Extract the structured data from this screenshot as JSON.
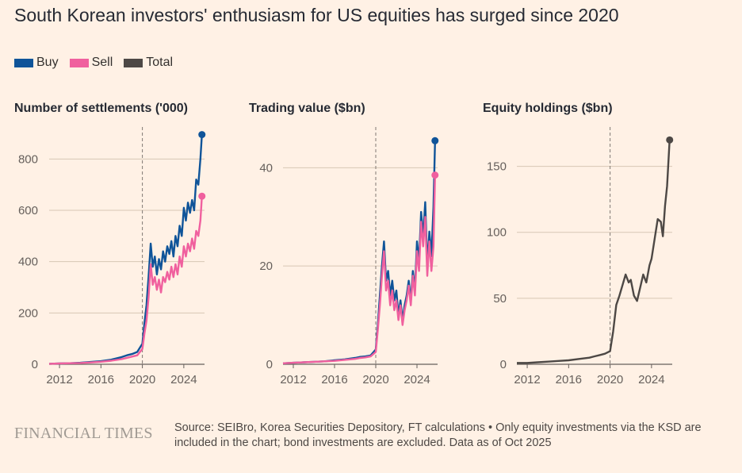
{
  "title": "South Korean investors' enthusiasm for US equities has surged since 2020",
  "legend": [
    {
      "label": "Buy",
      "color": "#0f5499"
    },
    {
      "label": "Sell",
      "color": "#f0609e"
    },
    {
      "label": "Total",
      "color": "#4d4845"
    }
  ],
  "colors": {
    "buy": "#0f5499",
    "sell": "#f0609e",
    "total": "#4d4845",
    "grid": "#d7c7b5",
    "axis": "#66605c"
  },
  "chart_data": [
    {
      "type": "line",
      "title": "Number of settlements ('000)",
      "x_ticks": [
        "2012",
        "2016",
        "2020",
        "2024"
      ],
      "y_ticks": [
        "0",
        "200",
        "400",
        "600",
        "800"
      ],
      "xlim": [
        2011.0,
        2026.0
      ],
      "ylim": [
        0,
        900
      ],
      "reference_line_x": 2020,
      "series": [
        {
          "name": "Buy",
          "color": "#0f5499",
          "x": [
            2011,
            2012,
            2013,
            2014,
            2015,
            2016,
            2017,
            2018,
            2018.5,
            2019,
            2019.5,
            2020,
            2020.2,
            2020.4,
            2020.6,
            2020.8,
            2021.0,
            2021.2,
            2021.4,
            2021.6,
            2021.8,
            2022.0,
            2022.2,
            2022.4,
            2022.6,
            2022.8,
            2023.0,
            2023.2,
            2023.4,
            2023.6,
            2023.8,
            2024.0,
            2024.2,
            2024.4,
            2024.6,
            2024.8,
            2025.0,
            2025.2,
            2025.4,
            2025.6,
            2025.75
          ],
          "y": [
            2,
            3,
            4,
            6,
            9,
            12,
            18,
            28,
            35,
            40,
            48,
            80,
            160,
            230,
            340,
            470,
            380,
            420,
            350,
            410,
            370,
            440,
            400,
            460,
            430,
            480,
            420,
            500,
            460,
            540,
            500,
            610,
            560,
            630,
            590,
            640,
            600,
            720,
            700,
            800,
            895
          ]
        },
        {
          "name": "Sell",
          "color": "#f0609e",
          "x": [
            2011,
            2012,
            2013,
            2014,
            2015,
            2016,
            2017,
            2018,
            2018.5,
            2019,
            2019.5,
            2020,
            2020.2,
            2020.4,
            2020.6,
            2020.8,
            2021.0,
            2021.2,
            2021.4,
            2021.6,
            2021.8,
            2022.0,
            2022.2,
            2022.4,
            2022.6,
            2022.8,
            2023.0,
            2023.2,
            2023.4,
            2023.6,
            2023.8,
            2024.0,
            2024.2,
            2024.4,
            2024.6,
            2024.8,
            2025.0,
            2025.2,
            2025.4,
            2025.6,
            2025.75
          ],
          "y": [
            2,
            3,
            4,
            5,
            7,
            10,
            14,
            20,
            25,
            30,
            35,
            60,
            120,
            170,
            260,
            390,
            310,
            340,
            290,
            330,
            280,
            340,
            320,
            360,
            330,
            380,
            340,
            390,
            350,
            420,
            380,
            460,
            420,
            470,
            440,
            490,
            450,
            520,
            500,
            560,
            655
          ]
        }
      ],
      "end_values": [
        895,
        655
      ]
    },
    {
      "type": "line",
      "title": "Trading value ($bn)",
      "x_ticks": [
        "2012",
        "2016",
        "2020",
        "2024"
      ],
      "y_ticks": [
        "0",
        "20",
        "40"
      ],
      "xlim": [
        2011.0,
        2026.0
      ],
      "ylim": [
        0,
        47
      ],
      "reference_line_x": 2020,
      "series": [
        {
          "name": "Buy",
          "color": "#0f5499",
          "x": [
            2011,
            2012,
            2013,
            2014,
            2015,
            2016,
            2017,
            2018,
            2018.5,
            2019,
            2019.5,
            2020,
            2020.2,
            2020.4,
            2020.6,
            2020.8,
            2021.0,
            2021.2,
            2021.4,
            2021.6,
            2021.8,
            2022.0,
            2022.2,
            2022.4,
            2022.6,
            2022.8,
            2023.0,
            2023.2,
            2023.4,
            2023.6,
            2023.8,
            2024.0,
            2024.2,
            2024.4,
            2024.6,
            2024.8,
            2025.0,
            2025.2,
            2025.4,
            2025.6,
            2025.75
          ],
          "y": [
            0.2,
            0.3,
            0.4,
            0.5,
            0.6,
            0.8,
            1.0,
            1.3,
            1.5,
            1.6,
            1.8,
            3,
            8,
            14,
            20,
            25,
            17,
            19,
            14,
            17,
            13,
            15,
            10,
            13,
            9,
            12,
            14,
            17,
            13,
            19,
            15,
            25,
            21,
            31,
            26,
            33,
            20,
            27,
            22,
            32,
            45.5
          ]
        },
        {
          "name": "Sell",
          "color": "#f0609e",
          "x": [
            2011,
            2012,
            2013,
            2014,
            2015,
            2016,
            2017,
            2018,
            2018.5,
            2019,
            2019.5,
            2020,
            2020.2,
            2020.4,
            2020.6,
            2020.8,
            2021.0,
            2021.2,
            2021.4,
            2021.6,
            2021.8,
            2022.0,
            2022.2,
            2022.4,
            2022.6,
            2022.8,
            2023.0,
            2023.2,
            2023.4,
            2023.6,
            2023.8,
            2024.0,
            2024.2,
            2024.4,
            2024.6,
            2024.8,
            2025.0,
            2025.2,
            2025.4,
            2025.6,
            2025.75
          ],
          "y": [
            0.2,
            0.3,
            0.4,
            0.5,
            0.6,
            0.7,
            0.9,
            1.1,
            1.3,
            1.4,
            1.6,
            2.5,
            7,
            12,
            18,
            23,
            15,
            17,
            12,
            15,
            11,
            13,
            9,
            12,
            8,
            11,
            13,
            16,
            12,
            18,
            14,
            23,
            19,
            29,
            24,
            30,
            18,
            25,
            19,
            24,
            38.5
          ]
        }
      ],
      "end_values": [
        45.5,
        38.5
      ]
    },
    {
      "type": "line",
      "title": "Equity holdings ($bn)",
      "x_ticks": [
        "2012",
        "2016",
        "2020",
        "2024"
      ],
      "y_ticks": [
        "0",
        "50",
        "100",
        "150"
      ],
      "xlim": [
        2011.0,
        2026.0
      ],
      "ylim": [
        0,
        175
      ],
      "reference_line_x": 2020,
      "series": [
        {
          "name": "Total",
          "color": "#4d4845",
          "x": [
            2011,
            2012,
            2013,
            2014,
            2015,
            2016,
            2017,
            2018,
            2018.5,
            2019,
            2019.5,
            2020,
            2020.3,
            2020.6,
            2020.9,
            2021.2,
            2021.5,
            2021.8,
            2022.0,
            2022.3,
            2022.6,
            2022.9,
            2023.2,
            2023.5,
            2023.8,
            2024.0,
            2024.3,
            2024.6,
            2024.9,
            2025.1,
            2025.3,
            2025.5,
            2025.75
          ],
          "y": [
            1,
            1,
            1.5,
            2,
            2.5,
            3,
            4,
            5,
            6,
            7,
            8,
            10,
            25,
            45,
            52,
            60,
            68,
            62,
            64,
            52,
            48,
            58,
            68,
            62,
            75,
            80,
            95,
            110,
            108,
            97,
            120,
            135,
            170
          ]
        }
      ],
      "end_values": [
        170
      ]
    }
  ],
  "footer": {
    "logo": "FINANCIAL TIMES",
    "source": "Source: SEIBro, Korea Securities Depository, FT calculations • Only equity investments via the KSD are included in the chart; bond investments are excluded. Data as of Oct 2025"
  }
}
